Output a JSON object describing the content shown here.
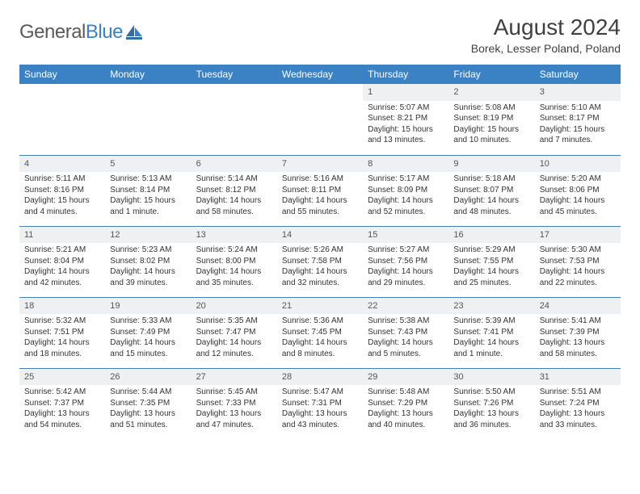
{
  "logo": {
    "word1": "General",
    "word2": "Blue"
  },
  "title": "August 2024",
  "location": "Borek, Lesser Poland, Poland",
  "colors": {
    "header_bg": "#3b82c4",
    "header_text": "#ffffff",
    "daynum_bg": "#eef0f2",
    "border": "#3b82c4"
  },
  "weekdays": [
    "Sunday",
    "Monday",
    "Tuesday",
    "Wednesday",
    "Thursday",
    "Friday",
    "Saturday"
  ],
  "weeks": [
    [
      null,
      null,
      null,
      null,
      {
        "n": "1",
        "sr": "5:07 AM",
        "ss": "8:21 PM",
        "dl": "15 hours and 13 minutes."
      },
      {
        "n": "2",
        "sr": "5:08 AM",
        "ss": "8:19 PM",
        "dl": "15 hours and 10 minutes."
      },
      {
        "n": "3",
        "sr": "5:10 AM",
        "ss": "8:17 PM",
        "dl": "15 hours and 7 minutes."
      }
    ],
    [
      {
        "n": "4",
        "sr": "5:11 AM",
        "ss": "8:16 PM",
        "dl": "15 hours and 4 minutes."
      },
      {
        "n": "5",
        "sr": "5:13 AM",
        "ss": "8:14 PM",
        "dl": "15 hours and 1 minute."
      },
      {
        "n": "6",
        "sr": "5:14 AM",
        "ss": "8:12 PM",
        "dl": "14 hours and 58 minutes."
      },
      {
        "n": "7",
        "sr": "5:16 AM",
        "ss": "8:11 PM",
        "dl": "14 hours and 55 minutes."
      },
      {
        "n": "8",
        "sr": "5:17 AM",
        "ss": "8:09 PM",
        "dl": "14 hours and 52 minutes."
      },
      {
        "n": "9",
        "sr": "5:18 AM",
        "ss": "8:07 PM",
        "dl": "14 hours and 48 minutes."
      },
      {
        "n": "10",
        "sr": "5:20 AM",
        "ss": "8:06 PM",
        "dl": "14 hours and 45 minutes."
      }
    ],
    [
      {
        "n": "11",
        "sr": "5:21 AM",
        "ss": "8:04 PM",
        "dl": "14 hours and 42 minutes."
      },
      {
        "n": "12",
        "sr": "5:23 AM",
        "ss": "8:02 PM",
        "dl": "14 hours and 39 minutes."
      },
      {
        "n": "13",
        "sr": "5:24 AM",
        "ss": "8:00 PM",
        "dl": "14 hours and 35 minutes."
      },
      {
        "n": "14",
        "sr": "5:26 AM",
        "ss": "7:58 PM",
        "dl": "14 hours and 32 minutes."
      },
      {
        "n": "15",
        "sr": "5:27 AM",
        "ss": "7:56 PM",
        "dl": "14 hours and 29 minutes."
      },
      {
        "n": "16",
        "sr": "5:29 AM",
        "ss": "7:55 PM",
        "dl": "14 hours and 25 minutes."
      },
      {
        "n": "17",
        "sr": "5:30 AM",
        "ss": "7:53 PM",
        "dl": "14 hours and 22 minutes."
      }
    ],
    [
      {
        "n": "18",
        "sr": "5:32 AM",
        "ss": "7:51 PM",
        "dl": "14 hours and 18 minutes."
      },
      {
        "n": "19",
        "sr": "5:33 AM",
        "ss": "7:49 PM",
        "dl": "14 hours and 15 minutes."
      },
      {
        "n": "20",
        "sr": "5:35 AM",
        "ss": "7:47 PM",
        "dl": "14 hours and 12 minutes."
      },
      {
        "n": "21",
        "sr": "5:36 AM",
        "ss": "7:45 PM",
        "dl": "14 hours and 8 minutes."
      },
      {
        "n": "22",
        "sr": "5:38 AM",
        "ss": "7:43 PM",
        "dl": "14 hours and 5 minutes."
      },
      {
        "n": "23",
        "sr": "5:39 AM",
        "ss": "7:41 PM",
        "dl": "14 hours and 1 minute."
      },
      {
        "n": "24",
        "sr": "5:41 AM",
        "ss": "7:39 PM",
        "dl": "13 hours and 58 minutes."
      }
    ],
    [
      {
        "n": "25",
        "sr": "5:42 AM",
        "ss": "7:37 PM",
        "dl": "13 hours and 54 minutes."
      },
      {
        "n": "26",
        "sr": "5:44 AM",
        "ss": "7:35 PM",
        "dl": "13 hours and 51 minutes."
      },
      {
        "n": "27",
        "sr": "5:45 AM",
        "ss": "7:33 PM",
        "dl": "13 hours and 47 minutes."
      },
      {
        "n": "28",
        "sr": "5:47 AM",
        "ss": "7:31 PM",
        "dl": "13 hours and 43 minutes."
      },
      {
        "n": "29",
        "sr": "5:48 AM",
        "ss": "7:29 PM",
        "dl": "13 hours and 40 minutes."
      },
      {
        "n": "30",
        "sr": "5:50 AM",
        "ss": "7:26 PM",
        "dl": "13 hours and 36 minutes."
      },
      {
        "n": "31",
        "sr": "5:51 AM",
        "ss": "7:24 PM",
        "dl": "13 hours and 33 minutes."
      }
    ]
  ],
  "labels": {
    "sunrise": "Sunrise: ",
    "sunset": "Sunset: ",
    "daylight": "Daylight: "
  }
}
